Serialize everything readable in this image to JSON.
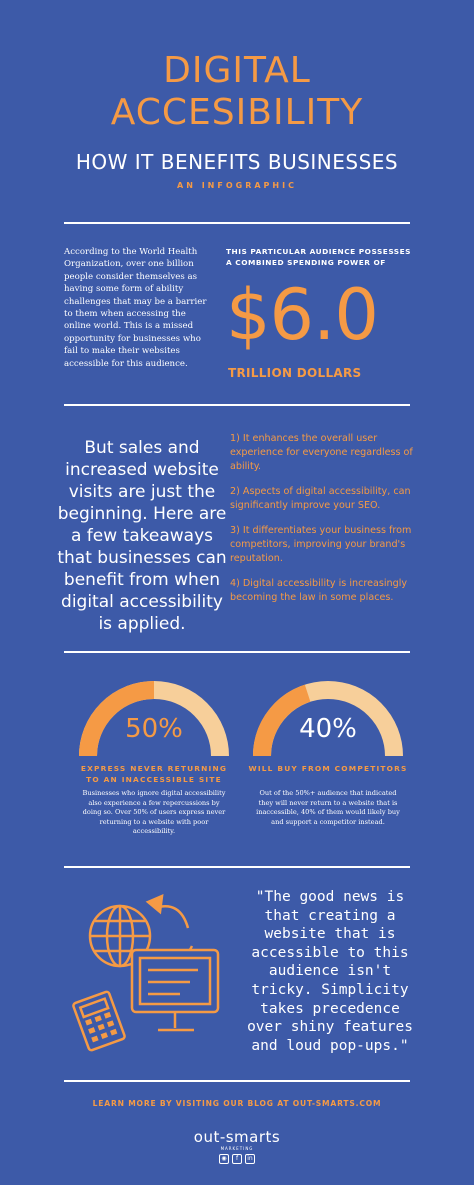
{
  "header": {
    "title_line1": "DIGITAL",
    "title_line2": "ACCESIBILITY",
    "subtitle": "HOW IT BENEFITS BUSINESSES",
    "tag": "AN INFOGRAPHIC"
  },
  "intro": {
    "text": "According to the World Health Organization, over one billion people consider themselves as having some form of ability challenges that may be a barrier to them when accessing the online world. This is a missed opportunity for businesses who fail to make their websites accessible for this audience."
  },
  "spending": {
    "label": "THIS PARTICULAR AUDIENCE POSSESSES A COMBINED SPENDING POWER OF",
    "value": "$6.0",
    "unit": "TRILLION DOLLARS"
  },
  "sales": {
    "text": "But sales and increased website visits are just the beginning. Here are a few takeaways that businesses can benefit from when digital accessibility is applied."
  },
  "points": [
    "1) It enhances the overall user experience for everyone regardless of ability.",
    "2) Aspects of digital accessibility, can significantly improve your SEO.",
    "3) It differentiates your business from competitors, improving your brand's reputation.",
    "4) Digital accessibility is increasingly becoming the law in some places."
  ],
  "stats": [
    {
      "value": "50%",
      "fraction": 0.5,
      "label": "EXPRESS NEVER RETURNING TO AN INACCESSIBLE SITE",
      "desc": "Businesses who ignore digital accessibility also experience a few repercussions by doing so. Over 50% of users express never returning to a website with poor accessibility."
    },
    {
      "value": "40%",
      "fraction": 0.4,
      "label": "WILL BUY FROM COMPETITORS",
      "desc": "Out of the 50%+ audience that indicated they will never return to a website that is inaccessible, 40% of them would likely buy and support a competitor instead."
    }
  ],
  "quote": {
    "text": "\"The good news is that creating a website that is accessible to this audience isn't tricky. Simplicity takes precedence over shiny features and loud pop-ups.\""
  },
  "footer": {
    "blog": "LEARN MORE BY VISITING OUR BLOG AT OUT-SMARTS.COM",
    "brand": "out-smarts",
    "brand_sub": "MARKETING",
    "socials": [
      "instagram-icon",
      "facebook-icon",
      "linkedin-icon"
    ]
  },
  "colors": {
    "background": "#3d5aa8",
    "accent": "#f59a45",
    "accent_light": "#f7cf9a",
    "text": "#ffffff"
  }
}
